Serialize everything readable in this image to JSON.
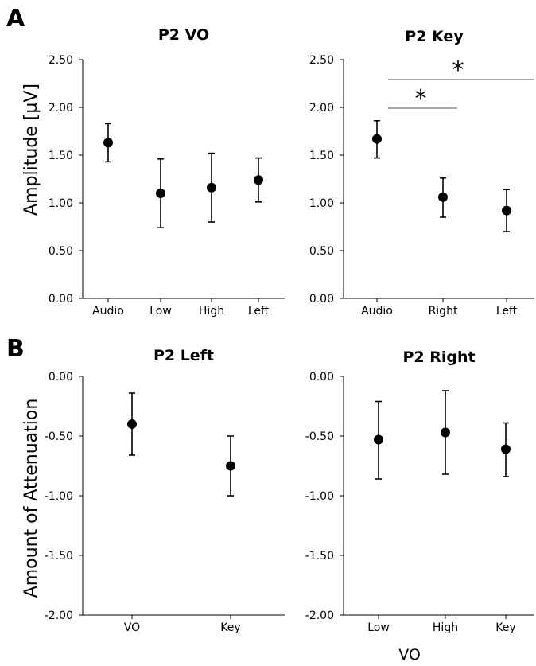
{
  "panel_labels": [
    "A",
    "B"
  ],
  "chart_data": [
    {
      "type": "scatter",
      "title": "P2 VO",
      "ylabel": "Amplitude [µV]",
      "xlabel": "",
      "categories": [
        "Audio",
        "Low",
        "High",
        "Left"
      ],
      "values": [
        1.63,
        1.1,
        1.16,
        1.24
      ],
      "err_low": [
        1.43,
        0.74,
        0.8,
        1.01
      ],
      "err_high": [
        1.83,
        1.46,
        1.52,
        1.47
      ],
      "ylim": [
        0,
        2.5
      ],
      "yticks": [
        "0.00",
        "0.50",
        "1.00",
        "1.50",
        "2.00",
        "2.50"
      ],
      "significance": []
    },
    {
      "type": "scatter",
      "title": "P2 Key",
      "ylabel": "",
      "xlabel": "",
      "categories": [
        "Audio",
        "Right",
        "Left"
      ],
      "values": [
        1.67,
        1.06,
        0.92
      ],
      "err_low": [
        1.47,
        0.85,
        0.7
      ],
      "err_high": [
        1.86,
        1.26,
        1.14
      ],
      "ylim": [
        0,
        2.5
      ],
      "yticks": [
        "0.00",
        "0.50",
        "1.00",
        "1.50",
        "2.00",
        "2.50"
      ],
      "significance": [
        {
          "from": "Audio",
          "to": "Right",
          "label": "*"
        },
        {
          "from": "Audio",
          "to": "Left",
          "label": "*"
        }
      ]
    },
    {
      "type": "scatter",
      "title": "P2 Left",
      "ylabel": "Amount of Attenuation",
      "xlabel": "",
      "categories": [
        "VO",
        "Key"
      ],
      "values": [
        -0.4,
        -0.75
      ],
      "err_low": [
        -0.66,
        -1.0
      ],
      "err_high": [
        -0.14,
        -0.5
      ],
      "ylim": [
        -2.0,
        0.0
      ],
      "yticks": [
        "-2.00",
        "-1.50",
        "-1.00",
        "-0.50",
        "0.00"
      ],
      "significance": []
    },
    {
      "type": "scatter",
      "title": "P2 Right",
      "ylabel": "",
      "xlabel": "VO",
      "categories": [
        "Low",
        "High",
        "Key"
      ],
      "values": [
        -0.53,
        -0.47,
        -0.61
      ],
      "err_low": [
        -0.86,
        -0.82,
        -0.84
      ],
      "err_high": [
        -0.21,
        -0.12,
        -0.39
      ],
      "ylim": [
        -2.0,
        0.0
      ],
      "yticks": [
        "-2.00",
        "-1.50",
        "-1.00",
        "-0.50",
        "0.00"
      ],
      "significance": []
    }
  ]
}
